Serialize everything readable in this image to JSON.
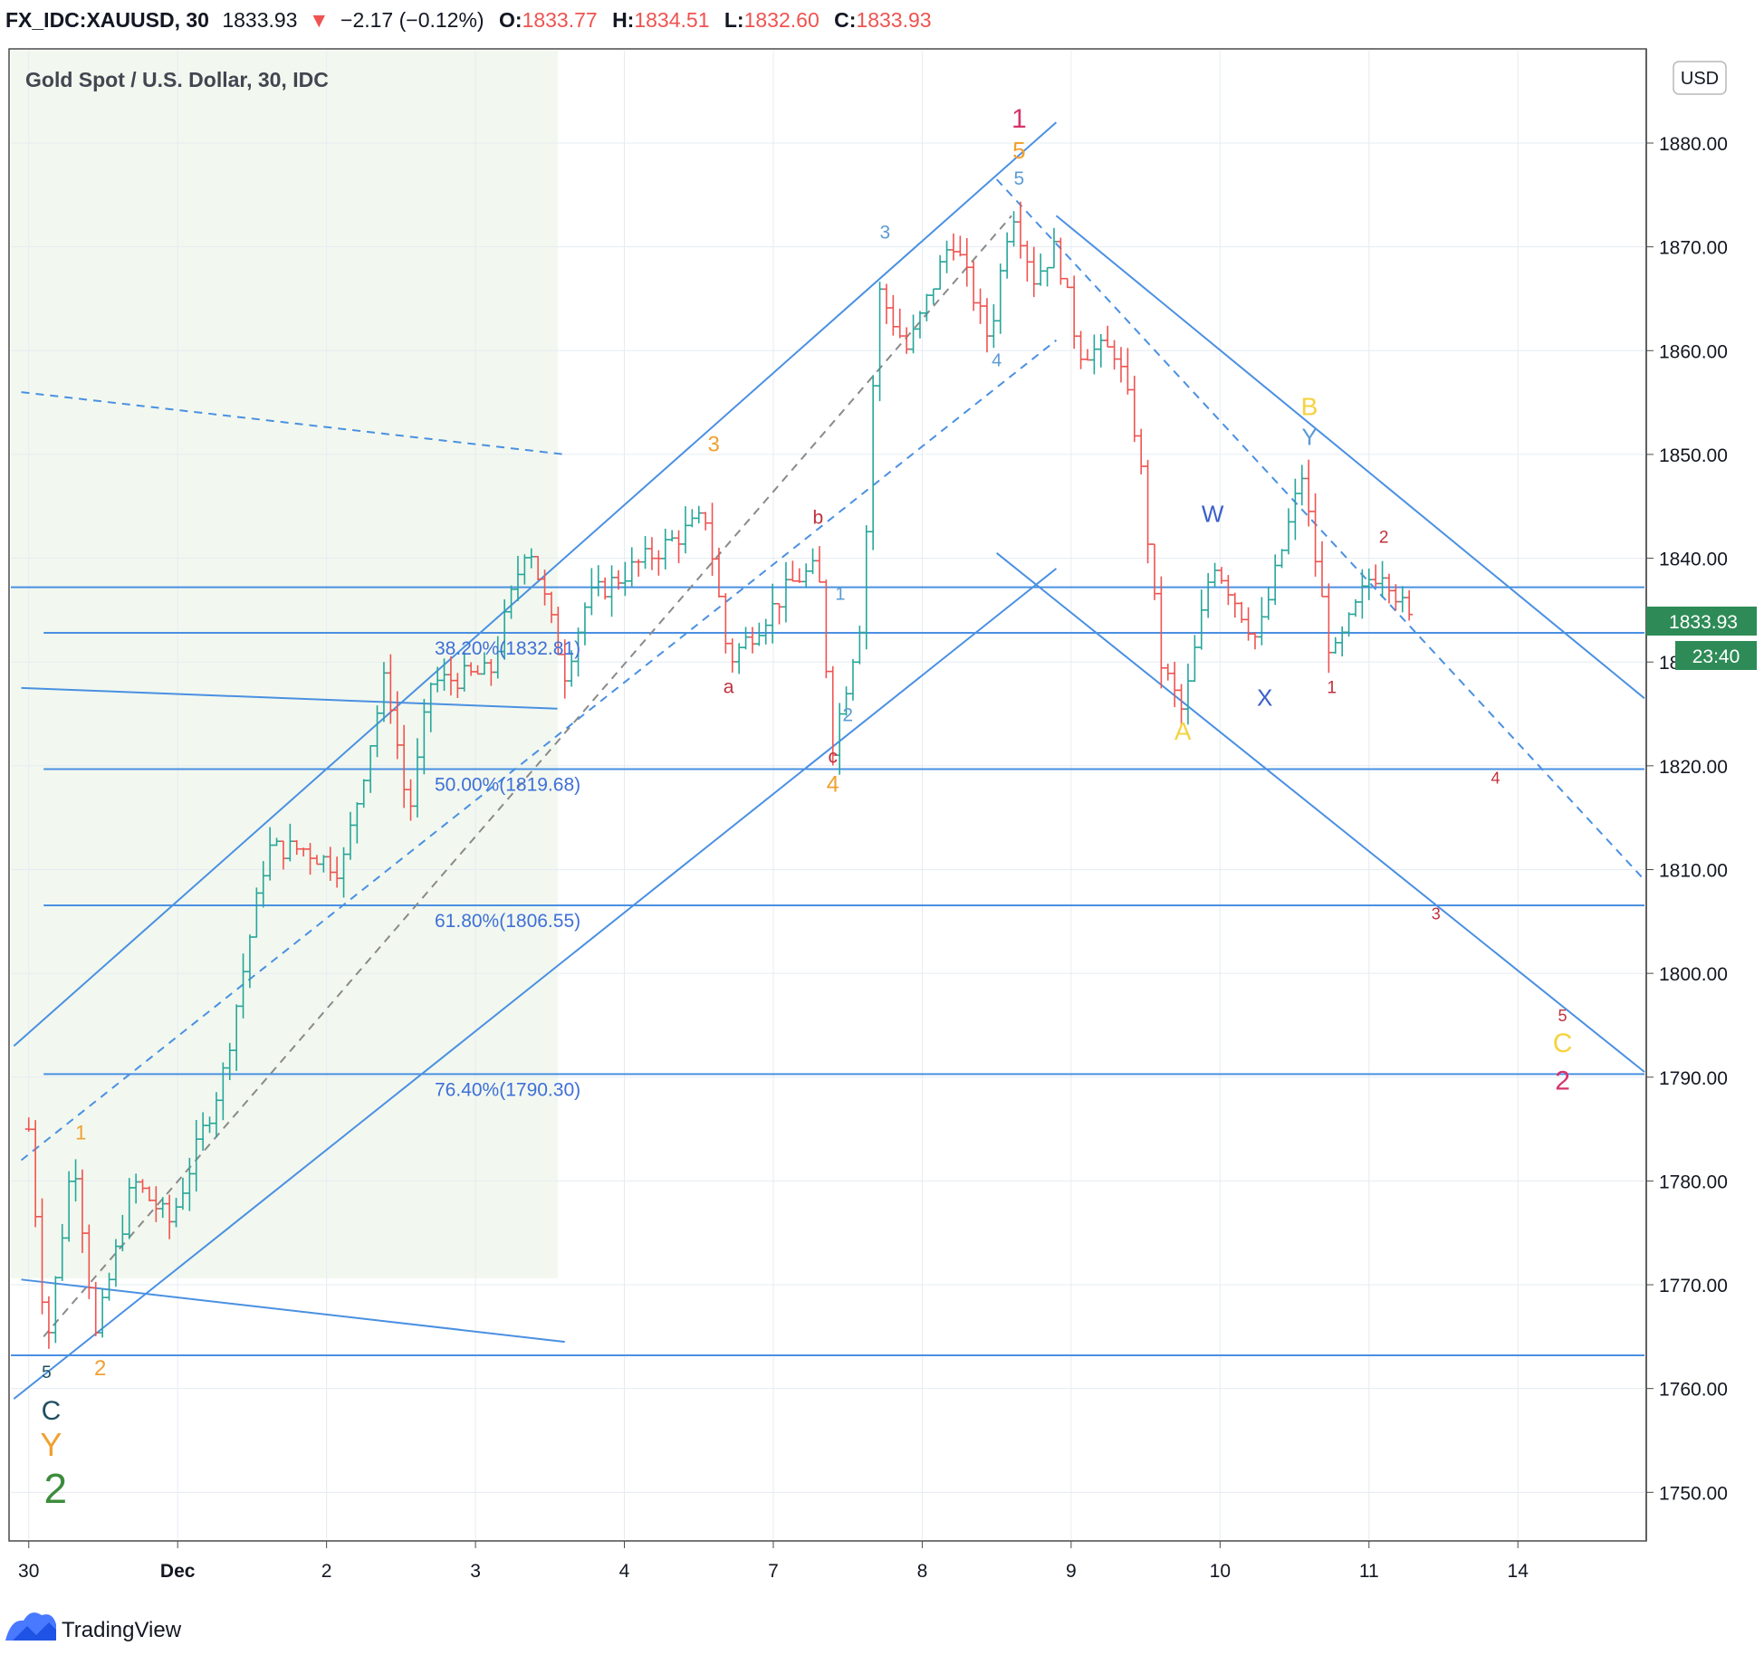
{
  "header": {
    "symbol": "FX_IDC:XAUUSD, 30",
    "last": "1833.93",
    "arrow": "▼",
    "change": "−2.17 (−0.12%)",
    "o_label": "O:",
    "o": "1833.77",
    "h_label": "H:",
    "h": "1834.51",
    "l_label": "L:",
    "l": "1832.60",
    "c_label": "C:",
    "c": "1833.93"
  },
  "legend_title": "Gold Spot / U.S. Dollar, 30, IDC",
  "currency_button": "USD",
  "price_badge": "1833.93",
  "countdown_badge": "23:40",
  "branding": {
    "name": "TradingView",
    "icon": "tradingview-logo-icon"
  },
  "colors": {
    "up": "#26a69a",
    "down": "#ef5350",
    "line": "#4a90e2",
    "fib": "#3f6fd8",
    "orange": "#f0a030",
    "red": "#c0303c",
    "pink": "#d6336c",
    "yellow": "#f5d33f",
    "blue": "#5b9bd5",
    "darkblue": "#3a5fc8",
    "green": "#3c8c3c",
    "teal": "#1f4f5f",
    "shade": "#f2f8ef",
    "badge": "#2e8b57"
  },
  "chart_data": {
    "type": "candlestick",
    "title": "Gold Spot / U.S. Dollar, 30, IDC",
    "y_axis": {
      "ticks": [
        1750,
        1760,
        1770,
        1780,
        1790,
        1800,
        1810,
        1820,
        1830,
        1840,
        1850,
        1860,
        1870,
        1880
      ],
      "ylim": [
        1745,
        1885
      ],
      "side": "right"
    },
    "x_axis": {
      "ticks": [
        "30",
        "Dec",
        "2",
        "3",
        "4",
        "7",
        "8",
        "9",
        "10",
        "11",
        "14"
      ]
    },
    "grid": true,
    "series_path": [
      {
        "t": 0.0,
        "p": 1785
      },
      {
        "t": 0.12,
        "p": 1764
      },
      {
        "t": 0.3,
        "p": 1783
      },
      {
        "t": 0.45,
        "p": 1765
      },
      {
        "t": 0.7,
        "p": 1780
      },
      {
        "t": 0.95,
        "p": 1776
      },
      {
        "t": 1.3,
        "p": 1790
      },
      {
        "t": 1.6,
        "p": 1812
      },
      {
        "t": 1.85,
        "p": 1812
      },
      {
        "t": 2.1,
        "p": 1810
      },
      {
        "t": 2.4,
        "p": 1829
      },
      {
        "t": 2.55,
        "p": 1815
      },
      {
        "t": 2.7,
        "p": 1828
      },
      {
        "t": 3.1,
        "p": 1829
      },
      {
        "t": 3.35,
        "p": 1842
      },
      {
        "t": 3.6,
        "p": 1829
      },
      {
        "t": 3.75,
        "p": 1836
      },
      {
        "t": 4.15,
        "p": 1840
      },
      {
        "t": 4.55,
        "p": 1844
      },
      {
        "t": 4.7,
        "p": 1830
      },
      {
        "t": 5.15,
        "p": 1838
      },
      {
        "t": 5.3,
        "p": 1839
      },
      {
        "t": 5.4,
        "p": 1822
      },
      {
        "t": 5.6,
        "p": 1835
      },
      {
        "t": 5.7,
        "p": 1866
      },
      {
        "t": 5.9,
        "p": 1860
      },
      {
        "t": 6.2,
        "p": 1871
      },
      {
        "t": 6.45,
        "p": 1861
      },
      {
        "t": 6.6,
        "p": 1874
      },
      {
        "t": 6.75,
        "p": 1867
      },
      {
        "t": 6.9,
        "p": 1870
      },
      {
        "t": 7.05,
        "p": 1860
      },
      {
        "t": 7.3,
        "p": 1860
      },
      {
        "t": 7.45,
        "p": 1851
      },
      {
        "t": 7.6,
        "p": 1830
      },
      {
        "t": 7.75,
        "p": 1825
      },
      {
        "t": 7.95,
        "p": 1840
      },
      {
        "t": 8.25,
        "p": 1832
      },
      {
        "t": 8.55,
        "p": 1848
      },
      {
        "t": 8.75,
        "p": 1830
      },
      {
        "t": 9.0,
        "p": 1838
      },
      {
        "t": 9.1,
        "p": 1839
      },
      {
        "t": 9.27,
        "p": 1834
      }
    ],
    "last_price": 1833.93,
    "fib_levels": [
      {
        "label": "38.20%(1832.81)",
        "price": 1832.81
      },
      {
        "label": "50.00%(1819.68)",
        "price": 1819.68
      },
      {
        "label": "61.80%(1806.55)",
        "price": 1806.55
      },
      {
        "label": "76.40%(1790.30)",
        "price": 1790.3
      }
    ],
    "horizontal_levels": [
      1837.2,
      1763.2
    ],
    "trendlines": [
      {
        "t1": -0.1,
        "p1": 1793,
        "t2": 6.9,
        "p2": 1882,
        "style": "solid"
      },
      {
        "t1": -0.1,
        "p1": 1759,
        "t2": 6.9,
        "p2": 1839,
        "style": "solid"
      },
      {
        "t1": -0.05,
        "p1": 1782,
        "t2": 6.9,
        "p2": 1861,
        "style": "dashed"
      },
      {
        "t1": 0.1,
        "p1": 1765,
        "t2": 6.6,
        "p2": 1873,
        "style": "dashed",
        "color": "#8a8a8a"
      },
      {
        "t1": -0.05,
        "p1": 1856,
        "t2": 3.6,
        "p2": 1850,
        "style": "dashed"
      },
      {
        "t1": -0.05,
        "p1": 1827.5,
        "t2": 3.55,
        "p2": 1825.5,
        "style": "solid"
      },
      {
        "t1": -0.05,
        "p1": 1770.5,
        "t2": 3.6,
        "p2": 1764.5,
        "style": "solid"
      },
      {
        "t1": 6.9,
        "p1": 1873,
        "t2": 10.85,
        "p2": 1826.5,
        "style": "solid"
      },
      {
        "t1": 6.5,
        "p1": 1840.5,
        "t2": 10.85,
        "p2": 1790.5,
        "style": "solid"
      },
      {
        "t1": 6.5,
        "p1": 1876.5,
        "t2": 10.85,
        "p2": 1809,
        "style": "dashed"
      }
    ],
    "wave_labels": [
      {
        "text": "1",
        "t": 6.65,
        "p": 1881.5,
        "color": "pink",
        "size": 30
      },
      {
        "text": "5",
        "t": 6.65,
        "p": 1878.5,
        "color": "orange",
        "size": 26
      },
      {
        "text": "5",
        "t": 6.65,
        "p": 1876.0,
        "color": "blue",
        "size": 21
      },
      {
        "text": "3",
        "t": 5.75,
        "p": 1870.8,
        "color": "blue",
        "size": 21
      },
      {
        "text": "3",
        "t": 4.6,
        "p": 1850.3,
        "color": "orange",
        "size": 24
      },
      {
        "text": "4",
        "t": 6.5,
        "p": 1858.5,
        "color": "blue",
        "size": 20
      },
      {
        "text": "b",
        "t": 5.3,
        "p": 1843.3,
        "color": "red",
        "size": 21
      },
      {
        "text": "1",
        "t": 5.45,
        "p": 1836.0,
        "color": "blue",
        "size": 20
      },
      {
        "text": "a",
        "t": 4.7,
        "p": 1827.0,
        "color": "red",
        "size": 21
      },
      {
        "text": "2",
        "t": 5.5,
        "p": 1824.3,
        "color": "blue",
        "size": 21
      },
      {
        "text": "c",
        "t": 5.4,
        "p": 1820.3,
        "color": "red",
        "size": 21
      },
      {
        "text": "4",
        "t": 5.4,
        "p": 1817.5,
        "color": "orange",
        "size": 25
      },
      {
        "text": "1",
        "t": 0.35,
        "p": 1784.0,
        "color": "orange",
        "size": 22
      },
      {
        "text": "5",
        "t": 0.12,
        "p": 1761.0,
        "color": "teal",
        "size": 19
      },
      {
        "text": "2",
        "t": 0.48,
        "p": 1761.3,
        "color": "orange",
        "size": 24
      },
      {
        "text": "C",
        "t": 0.15,
        "p": 1757.0,
        "color": "teal",
        "size": 30
      },
      {
        "text": "Y",
        "t": 0.15,
        "p": 1753.5,
        "color": "orange",
        "size": 36
      },
      {
        "text": "2",
        "t": 0.18,
        "p": 1749.0,
        "color": "green",
        "size": 46
      },
      {
        "text": "B",
        "t": 8.6,
        "p": 1853.8,
        "color": "yellow",
        "size": 28
      },
      {
        "text": "Y",
        "t": 8.6,
        "p": 1850.9,
        "color": "blue",
        "size": 26
      },
      {
        "text": "W",
        "t": 7.95,
        "p": 1843.5,
        "color": "darkblue",
        "size": 26
      },
      {
        "text": "2",
        "t": 9.1,
        "p": 1841.5,
        "color": "red",
        "size": 19
      },
      {
        "text": "X",
        "t": 8.3,
        "p": 1825.8,
        "color": "darkblue",
        "size": 26
      },
      {
        "text": "1",
        "t": 8.75,
        "p": 1827.0,
        "color": "red",
        "size": 19
      },
      {
        "text": "A",
        "t": 7.75,
        "p": 1822.5,
        "color": "yellow",
        "size": 28
      },
      {
        "text": "4",
        "t": 9.85,
        "p": 1818.3,
        "color": "red",
        "size": 18
      },
      {
        "text": "3",
        "t": 9.45,
        "p": 1805.2,
        "color": "red",
        "size": 18
      },
      {
        "text": "5",
        "t": 10.3,
        "p": 1795.4,
        "color": "red",
        "size": 18
      },
      {
        "text": "C",
        "t": 10.3,
        "p": 1792.4,
        "color": "yellow",
        "size": 30
      },
      {
        "text": "2",
        "t": 10.3,
        "p": 1788.8,
        "color": "pink",
        "size": 30
      }
    ]
  }
}
